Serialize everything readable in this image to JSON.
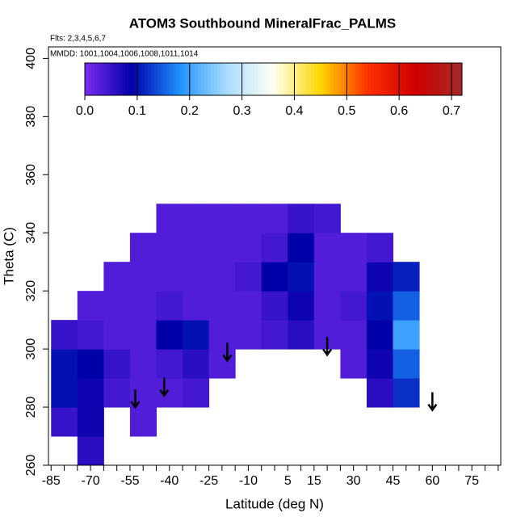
{
  "chart_data": {
    "type": "heatmap",
    "title": "ATOM3 Southbound MineralFrac_PALMS",
    "subtitle": "Flts: 2,3,4,5,6,7",
    "annotation": "MMDD: 1001,1004,1006,1008,1011,1014",
    "x_label": "Latitude (deg N)",
    "y_label": "Theta (C)",
    "xlim": [
      -86,
      86
    ],
    "xticks": [
      -85,
      -70,
      -55,
      -40,
      -25,
      -10,
      5,
      15,
      30,
      45,
      60,
      75
    ],
    "xminor": [
      -80,
      -75,
      -65,
      -60,
      -50,
      -45,
      -35,
      -30,
      -20,
      -15,
      -5,
      0,
      10,
      20,
      25,
      35,
      40,
      50,
      55,
      65,
      70,
      80,
      85
    ],
    "ylim": [
      260,
      404
    ],
    "yticks": [
      260,
      280,
      300,
      320,
      340,
      360,
      380,
      400
    ],
    "x_edges": [
      -85,
      -75,
      -65,
      -55,
      -45,
      -35,
      -25,
      -15,
      -5,
      5,
      15,
      25,
      35,
      45,
      55
    ],
    "y_edges": [
      260,
      270,
      280,
      290,
      300,
      310,
      320,
      330,
      340,
      350
    ],
    "z": [
      [
        null,
        0.06,
        null,
        null,
        null,
        null,
        null,
        null,
        null,
        null,
        null,
        null,
        null,
        null
      ],
      [
        0.05,
        0.08,
        null,
        0.03,
        null,
        null,
        null,
        null,
        null,
        null,
        null,
        null,
        null,
        null
      ],
      [
        0.1,
        0.08,
        0.04,
        0.03,
        0.03,
        0.04,
        null,
        null,
        null,
        null,
        null,
        null,
        0.06,
        0.12
      ],
      [
        0.1,
        0.09,
        0.05,
        0.03,
        0.04,
        0.06,
        0.03,
        null,
        null,
        null,
        null,
        0.03,
        0.08,
        0.15
      ],
      [
        0.05,
        0.04,
        0.03,
        0.03,
        0.09,
        0.1,
        0.03,
        0.03,
        0.04,
        0.06,
        0.03,
        0.03,
        0.09,
        0.2
      ],
      [
        null,
        0.03,
        0.03,
        0.03,
        0.04,
        0.03,
        0.03,
        0.03,
        0.05,
        0.08,
        0.03,
        0.04,
        0.1,
        0.15
      ],
      [
        null,
        null,
        0.03,
        0.03,
        0.03,
        0.03,
        0.03,
        0.04,
        0.09,
        0.1,
        0.03,
        0.03,
        0.08,
        0.11
      ],
      [
        null,
        null,
        null,
        0.03,
        0.03,
        0.03,
        0.03,
        0.03,
        0.04,
        0.09,
        0.03,
        0.03,
        0.04,
        null
      ],
      [
        null,
        null,
        null,
        null,
        0.03,
        0.03,
        0.03,
        0.03,
        0.03,
        0.05,
        0.04,
        null,
        null,
        null
      ]
    ],
    "zlim": [
      0,
      0.72
    ],
    "zticks": [
      {
        "value": 0,
        "label": "0.0"
      },
      0.1,
      0.2,
      0.3,
      0.4,
      0.5,
      0.6,
      0.7
    ],
    "colorscale": [
      "#7b2cf2",
      "#0000a8",
      "#1e90ff",
      "#a8dcff",
      "#fffff0",
      "#ffd700",
      "#ff3000",
      "#d00000",
      "#a52a2a"
    ],
    "arrows": {
      "x": [
        -53,
        -42,
        -18,
        20,
        60
      ],
      "y": [
        280,
        284,
        296,
        298,
        279
      ]
    }
  }
}
